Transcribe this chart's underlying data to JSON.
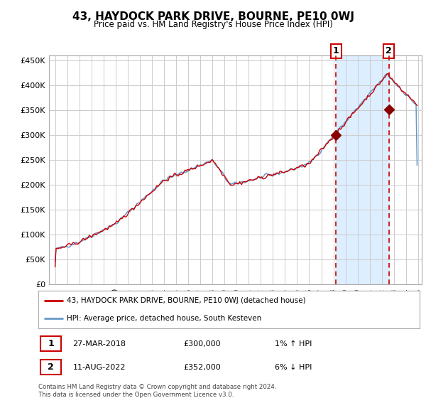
{
  "title": "43, HAYDOCK PARK DRIVE, BOURNE, PE10 0WJ",
  "subtitle": "Price paid vs. HM Land Registry's House Price Index (HPI)",
  "legend_line1": "43, HAYDOCK PARK DRIVE, BOURNE, PE10 0WJ (detached house)",
  "legend_line2": "HPI: Average price, detached house, South Kesteven",
  "transaction1_date": "27-MAR-2018",
  "transaction1_price": 300000,
  "transaction1_hpi_pct": "1%",
  "transaction1_hpi_dir": "↑",
  "transaction1_year": 2018.208,
  "transaction2_date": "11-AUG-2022",
  "transaction2_price": 352000,
  "transaction2_hpi_pct": "6%",
  "transaction2_hpi_dir": "↓",
  "transaction2_year": 2022.583,
  "footer": "Contains HM Land Registry data © Crown copyright and database right 2024.\nThis data is licensed under the Open Government Licence v3.0.",
  "hpi_color": "#6699cc",
  "price_color": "#cc0000",
  "marker_color": "#880000",
  "dashed_line_color": "#cc0000",
  "shaded_color": "#ddeeff",
  "ylim_min": 0,
  "ylim_max": 460000,
  "ytick_values": [
    0,
    50000,
    100000,
    150000,
    200000,
    250000,
    300000,
    350000,
    400000,
    450000
  ],
  "start_year": 1995,
  "end_year": 2025
}
